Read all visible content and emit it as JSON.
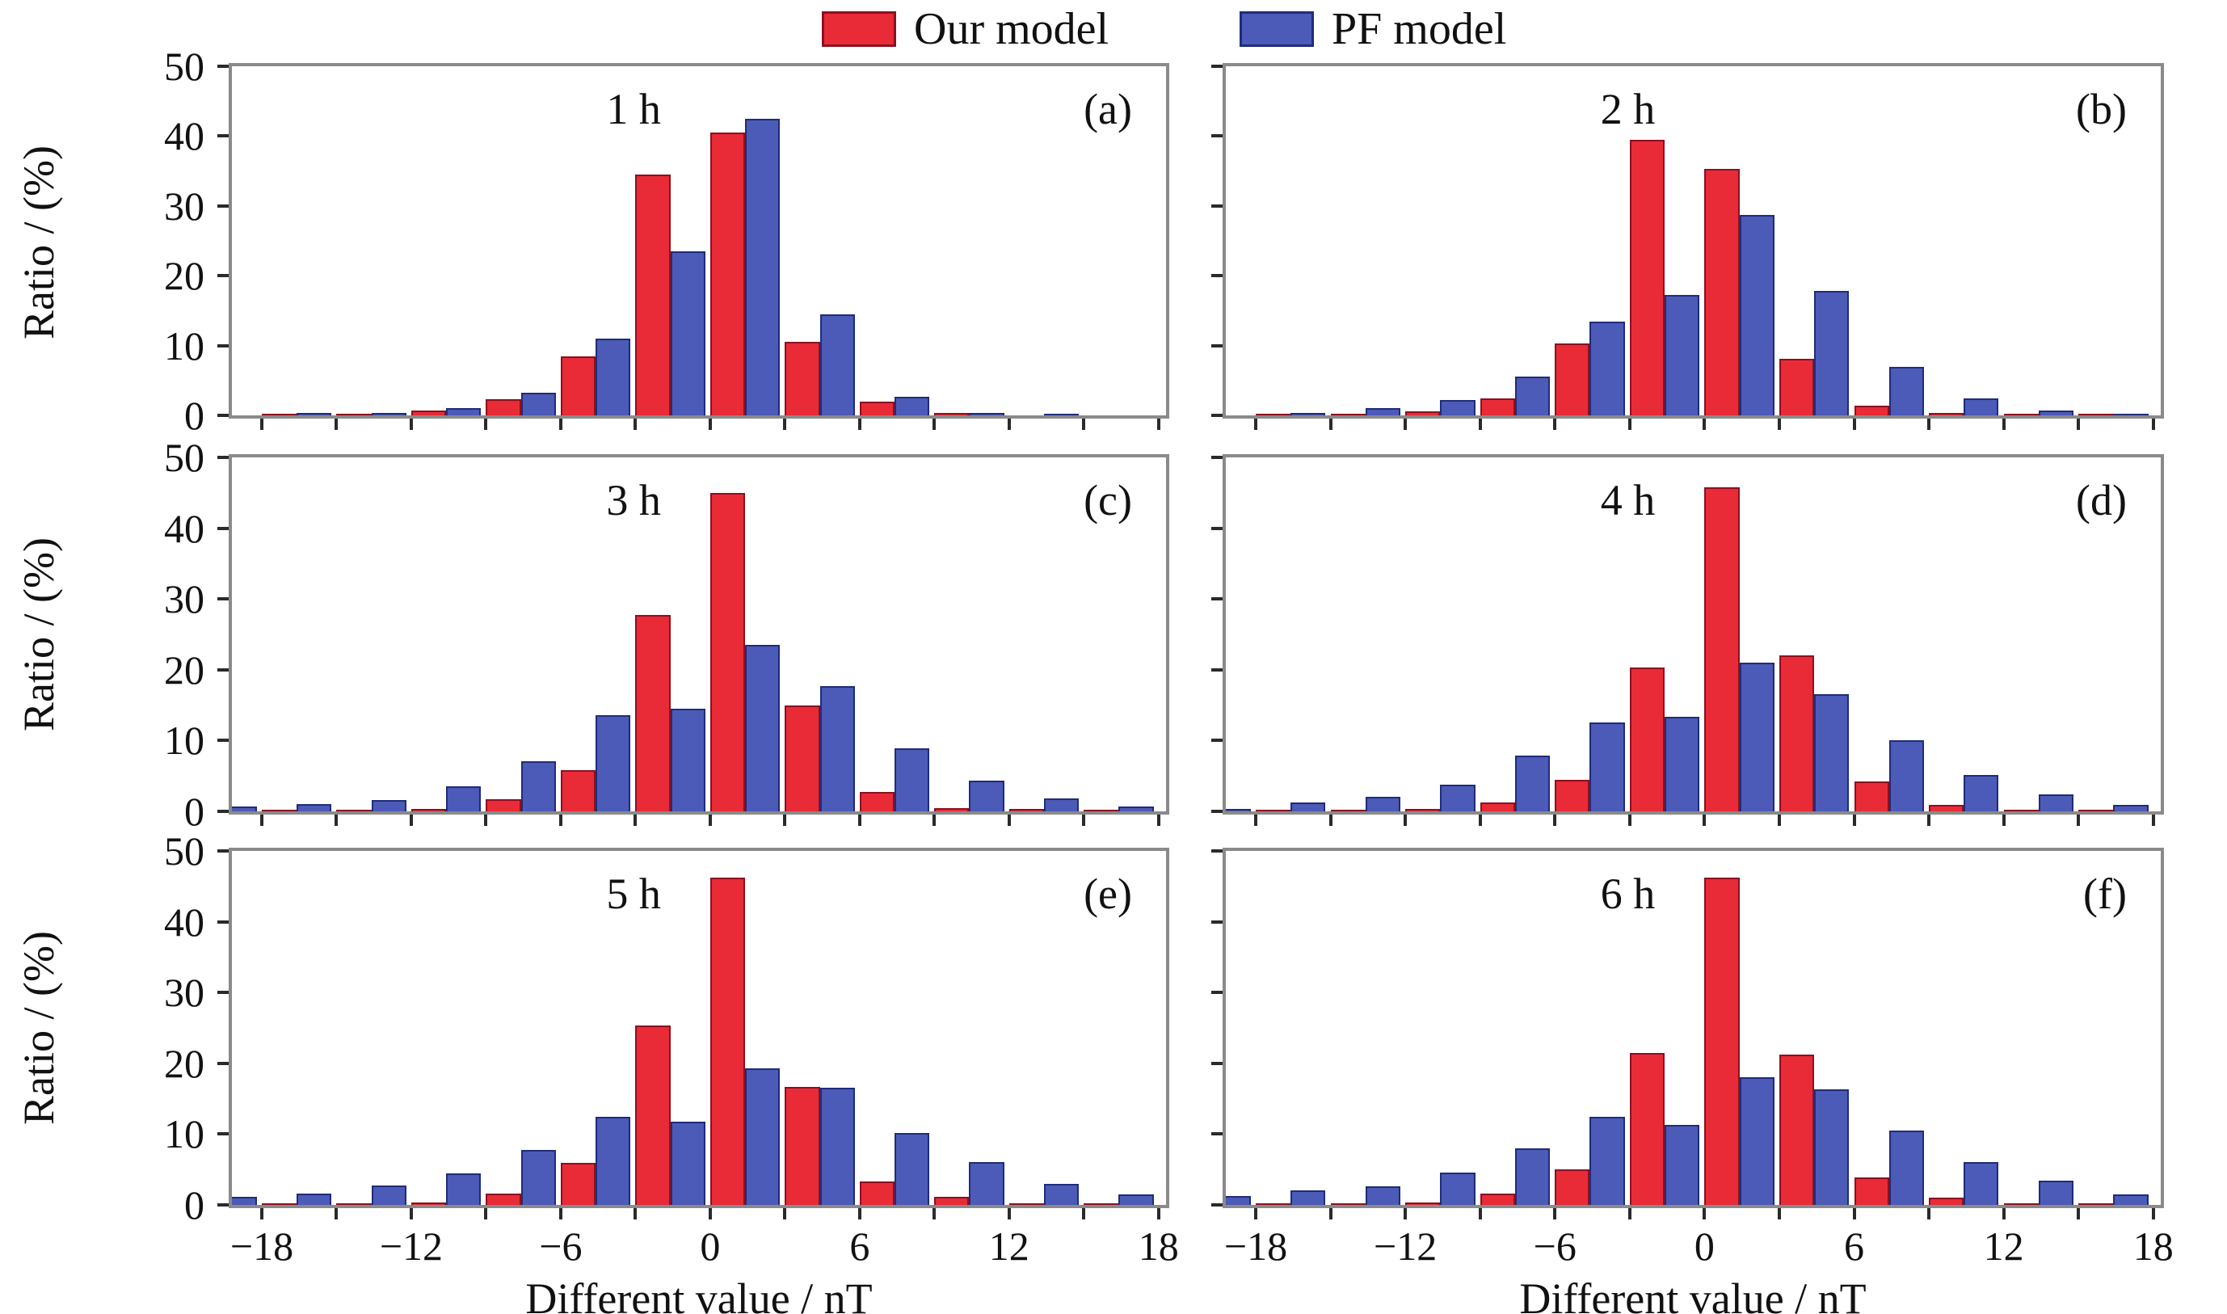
{
  "legend": {
    "items": [
      {
        "label": "Our model",
        "color": "#e82b36",
        "border": "#8c1020"
      },
      {
        "label": "PF model",
        "color": "#4c5ab8",
        "border": "#202c78"
      }
    ]
  },
  "axes": {
    "ylabel": "Ratio / (%)",
    "xlabel": "Different value / nT",
    "ylim": [
      0,
      50
    ],
    "yticks": [
      0,
      10,
      20,
      30,
      40,
      50
    ],
    "ytick_labels": [
      "0",
      "10",
      "20",
      "30",
      "40",
      "50"
    ],
    "xticks": [
      -18,
      -15,
      -12,
      -9,
      -6,
      -3,
      0,
      3,
      6,
      9,
      12,
      15,
      18
    ],
    "xtick_major": [
      {
        "v": -18,
        "label": "−18"
      },
      {
        "v": -12,
        "label": "−12"
      },
      {
        "v": -6,
        "label": "−6"
      },
      {
        "v": 0,
        "label": "0"
      },
      {
        "v": 6,
        "label": "6"
      },
      {
        "v": 12,
        "label": "12"
      },
      {
        "v": 18,
        "label": "18"
      }
    ],
    "xlim": [
      -19.2,
      18.3
    ]
  },
  "chart_data": [
    {
      "type": "bar",
      "title": "1 h",
      "panel_letter": "(a)",
      "categories": [
        -21,
        -18,
        -15,
        -12,
        -9,
        -6,
        -3,
        0,
        3,
        6,
        9,
        12,
        15
      ],
      "series": [
        {
          "name": "Our model",
          "values": [
            0,
            0.2,
            0.2,
            0.7,
            2.3,
            8.5,
            34.5,
            40.5,
            10.5,
            2.0,
            0.3,
            0,
            0
          ]
        },
        {
          "name": "PF model",
          "values": [
            0,
            0.3,
            0.3,
            1.0,
            3.2,
            11.0,
            23.5,
            42.5,
            14.5,
            2.7,
            0.4,
            0.1,
            0
          ]
        }
      ],
      "xlabel": "Different value / nT",
      "ylabel": "Ratio / (%)",
      "ylim": [
        0,
        50
      ]
    },
    {
      "type": "bar",
      "title": "2 h",
      "panel_letter": "(b)",
      "categories": [
        -21,
        -18,
        -15,
        -12,
        -9,
        -6,
        -3,
        0,
        3,
        6,
        9,
        12,
        15
      ],
      "series": [
        {
          "name": "Our model",
          "values": [
            0,
            0.2,
            0.2,
            0.6,
            2.4,
            10.3,
            39.5,
            35.3,
            8.1,
            1.4,
            0.3,
            0.1,
            0.1
          ]
        },
        {
          "name": "PF model",
          "values": [
            0,
            0.3,
            1.1,
            2.2,
            5.5,
            13.4,
            17.3,
            28.7,
            17.8,
            7.0,
            2.4,
            0.7,
            0.2
          ]
        }
      ],
      "xlabel": "Different value / nT",
      "ylabel": "Ratio / (%)",
      "ylim": [
        0,
        50
      ]
    },
    {
      "type": "bar",
      "title": "3 h",
      "panel_letter": "(c)",
      "categories": [
        -21,
        -18,
        -15,
        -12,
        -9,
        -6,
        -3,
        0,
        3,
        6,
        9,
        12,
        15
      ],
      "series": [
        {
          "name": "Our model",
          "values": [
            0,
            0.2,
            0.2,
            0.3,
            1.7,
            5.8,
            27.7,
            45.0,
            15.0,
            2.7,
            0.5,
            0.3,
            0.1
          ]
        },
        {
          "name": "PF model",
          "values": [
            0.7,
            1.0,
            1.6,
            3.5,
            7.1,
            13.6,
            14.5,
            23.5,
            17.7,
            8.9,
            4.3,
            1.8,
            0.7
          ]
        }
      ],
      "xlabel": "Different value / nT",
      "ylabel": "Ratio / (%)",
      "ylim": [
        0,
        50
      ]
    },
    {
      "type": "bar",
      "title": "4 h",
      "panel_letter": "(d)",
      "categories": [
        -21,
        -18,
        -15,
        -12,
        -9,
        -6,
        -3,
        0,
        3,
        6,
        9,
        12,
        15
      ],
      "series": [
        {
          "name": "Our model",
          "values": [
            0,
            0.1,
            0.2,
            0.3,
            1.3,
            4.4,
            20.3,
            45.8,
            22.0,
            4.2,
            0.9,
            0.2,
            0.2
          ]
        },
        {
          "name": "PF model",
          "values": [
            0.4,
            1.3,
            2.0,
            3.8,
            7.9,
            12.6,
            13.4,
            21.0,
            16.5,
            10.1,
            5.1,
            2.4,
            0.9
          ]
        }
      ],
      "xlabel": "Different value / nT",
      "ylabel": "Ratio / (%)",
      "ylim": [
        0,
        50
      ]
    },
    {
      "type": "bar",
      "title": "5 h",
      "panel_letter": "(e)",
      "categories": [
        -21,
        -18,
        -15,
        -12,
        -9,
        -6,
        -3,
        0,
        3,
        6,
        9,
        12,
        15
      ],
      "series": [
        {
          "name": "Our model",
          "values": [
            0,
            0.1,
            0.2,
            0.3,
            1.6,
            5.9,
            25.3,
            46.2,
            16.7,
            3.3,
            1.2,
            0.2,
            0.1
          ]
        },
        {
          "name": "PF model",
          "values": [
            1.2,
            1.6,
            2.7,
            4.4,
            7.8,
            12.5,
            11.8,
            19.3,
            16.5,
            10.2,
            6.1,
            3.0,
            1.5
          ]
        }
      ],
      "xlabel": "Different value / nT",
      "ylabel": "Ratio / (%)",
      "ylim": [
        0,
        50
      ]
    },
    {
      "type": "bar",
      "title": "6 h",
      "panel_letter": "(f)",
      "categories": [
        -21,
        -18,
        -15,
        -12,
        -9,
        -6,
        -3,
        0,
        3,
        6,
        9,
        12,
        15
      ],
      "series": [
        {
          "name": "Our model",
          "values": [
            0,
            0.1,
            0.2,
            0.3,
            1.6,
            5.0,
            21.5,
            46.2,
            21.2,
            3.9,
            1.0,
            0.2,
            0.1
          ]
        },
        {
          "name": "PF model",
          "values": [
            1.3,
            2.0,
            2.6,
            4.6,
            8.0,
            12.4,
            11.3,
            18.0,
            16.3,
            10.5,
            6.0,
            3.4,
            1.5
          ]
        }
      ],
      "xlabel": "Different value / nT",
      "ylabel": "Ratio / (%)",
      "ylim": [
        0,
        50
      ]
    }
  ]
}
